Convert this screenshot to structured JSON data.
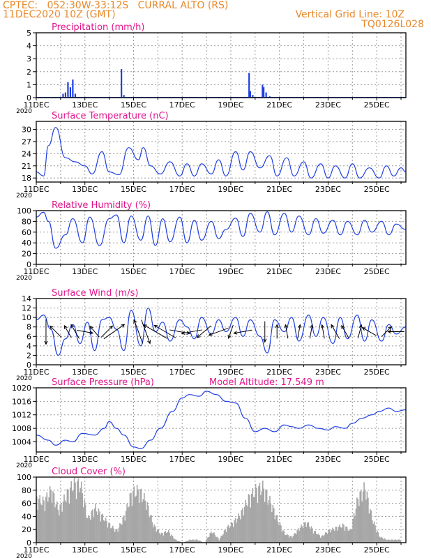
{
  "header": {
    "line1_left": "CPTEC:   052:30W-33:12S   CURRAL ALTO (RS)",
    "line2_left": "11DEC2020 10Z (GMT)",
    "line2_right": "Vertical Grid Line: 10Z",
    "line3_right": "TQ0126L028"
  },
  "colors": {
    "header_text": "#e8892b",
    "panel_title": "#e0168c",
    "series_line": "#1f3fe0",
    "precip_bar": "#1f3fe0",
    "wind_arrow": "#000000",
    "cloud_bar": "#a6a6a6",
    "grid": "#999999"
  },
  "x_axis": {
    "range_days": [
      11,
      26.2
    ],
    "date_ticks": [
      {
        "day": 11,
        "label": "11DEC"
      },
      {
        "day": 13,
        "label": "13DEC"
      },
      {
        "day": 15,
        "label": "15DEC"
      },
      {
        "day": 17,
        "label": "17DEC"
      },
      {
        "day": 19,
        "label": "19DEC"
      },
      {
        "day": 21,
        "label": "21DEC"
      },
      {
        "day": 23,
        "label": "23DEC"
      },
      {
        "day": 25,
        "label": "25DEC"
      }
    ],
    "year_label": "2020"
  },
  "chart_data": [
    {
      "type": "bar",
      "title": "Precipitation (mm/h)",
      "ylim": [
        0,
        5
      ],
      "yticks": [
        0,
        1,
        2,
        3,
        4,
        5
      ],
      "grid": true,
      "x": [
        11.1,
        11.5,
        12.0,
        12.1,
        12.2,
        12.3,
        12.4,
        12.5,
        12.6,
        14.4,
        14.5,
        14.6,
        19.6,
        19.75,
        19.8,
        19.9,
        20.3,
        20.35,
        20.45,
        20.6,
        22.0,
        24.0
      ],
      "values": [
        0.05,
        0.05,
        0.05,
        0.3,
        0.4,
        1.2,
        0.8,
        1.4,
        0.3,
        0.05,
        2.2,
        0.2,
        0.05,
        1.9,
        0.5,
        0.2,
        1.0,
        0.8,
        0.4,
        0.1,
        0.05,
        0.05
      ]
    },
    {
      "type": "line",
      "title": "Surface Temperature (nC)",
      "ylim": [
        17,
        32
      ],
      "yticks": [
        18,
        21,
        24,
        27,
        30
      ],
      "grid": true,
      "x": [
        11.0,
        11.3,
        11.5,
        11.8,
        12.2,
        12.6,
        13.0,
        13.3,
        13.7,
        14.0,
        14.4,
        14.8,
        15.2,
        15.4,
        15.7,
        16.1,
        16.5,
        16.9,
        17.2,
        17.5,
        17.8,
        18.2,
        18.5,
        18.8,
        19.2,
        19.5,
        19.8,
        20.2,
        20.6,
        20.9,
        21.3,
        21.6,
        22.0,
        22.3,
        22.7,
        23.0,
        23.3,
        23.7,
        24.0,
        24.3,
        24.7,
        25.1,
        25.4,
        25.7,
        26.0,
        26.2
      ],
      "y": [
        19.5,
        18.5,
        26.0,
        30.5,
        23.0,
        22.0,
        21.0,
        19.0,
        24.5,
        19.5,
        18.8,
        25.5,
        22.5,
        25.5,
        21.0,
        19.0,
        22.0,
        18.5,
        21.5,
        18.5,
        21.5,
        19.0,
        22.5,
        18.5,
        24.5,
        20.0,
        24.5,
        20.5,
        23.5,
        18.5,
        23.0,
        18.5,
        22.0,
        18.0,
        21.5,
        18.0,
        21.0,
        18.0,
        21.5,
        18.0,
        20.5,
        18.0,
        21.0,
        18.5,
        20.5,
        19.5
      ]
    },
    {
      "type": "line",
      "title": "Relative Humidity (%)",
      "ylim": [
        0,
        100
      ],
      "yticks": [
        0,
        20,
        40,
        60,
        80,
        100
      ],
      "grid": true,
      "x": [
        11.0,
        11.3,
        11.5,
        11.8,
        12.2,
        12.5,
        12.9,
        13.2,
        13.6,
        14.0,
        14.3,
        14.6,
        14.9,
        15.3,
        15.6,
        15.9,
        16.2,
        16.5,
        16.9,
        17.2,
        17.5,
        17.8,
        18.2,
        18.5,
        18.8,
        19.2,
        19.5,
        19.8,
        20.2,
        20.5,
        20.8,
        21.2,
        21.5,
        21.8,
        22.2,
        22.5,
        22.8,
        23.2,
        23.5,
        23.8,
        24.2,
        24.5,
        24.8,
        25.2,
        25.5,
        25.8,
        26.2
      ],
      "y": [
        88.0,
        97.0,
        80.0,
        30.0,
        55.0,
        85.0,
        40.0,
        88.0,
        35.0,
        85.0,
        92.0,
        40.0,
        90.0,
        45.0,
        90.0,
        35.0,
        85.0,
        42.0,
        88.0,
        40.0,
        82.0,
        45.0,
        80.0,
        48.0,
        65.0,
        86.0,
        52.0,
        95.0,
        60.0,
        98.0,
        55.0,
        95.0,
        60.0,
        90.0,
        55.0,
        85.0,
        58.0,
        82.0,
        55.0,
        80.0,
        55.0,
        82.0,
        60.0,
        80.0,
        55.0,
        75.0,
        65.0
      ]
    },
    {
      "type": "line",
      "title": "Surface Wind (m/s)",
      "ylim": [
        0,
        14
      ],
      "yticks": [
        0,
        2,
        4,
        6,
        8,
        10,
        12,
        14
      ],
      "grid": true,
      "x": [
        11.0,
        11.3,
        11.6,
        11.9,
        12.2,
        12.5,
        12.8,
        13.1,
        13.4,
        13.7,
        14.0,
        14.3,
        14.6,
        14.9,
        15.3,
        15.6,
        15.9,
        16.2,
        16.5,
        16.9,
        17.2,
        17.5,
        17.8,
        18.2,
        18.5,
        18.8,
        19.2,
        19.5,
        19.8,
        20.2,
        20.5,
        20.8,
        21.2,
        21.5,
        21.8,
        22.2,
        22.5,
        22.8,
        23.2,
        23.5,
        23.8,
        24.2,
        24.5,
        24.8,
        25.2,
        25.5,
        25.8,
        26.2
      ],
      "y": [
        9.5,
        10.5,
        7.5,
        2.0,
        5.5,
        8.5,
        4.5,
        9.0,
        3.0,
        9.5,
        10.0,
        7.5,
        3.0,
        11.5,
        4.0,
        12.0,
        7.0,
        9.0,
        5.0,
        9.5,
        8.0,
        5.5,
        10.0,
        6.5,
        9.5,
        7.0,
        10.0,
        6.0,
        9.5,
        6.0,
        2.5,
        9.5,
        7.0,
        10.0,
        5.0,
        10.5,
        6.0,
        10.0,
        4.5,
        10.0,
        5.5,
        10.5,
        5.0,
        9.5,
        5.0,
        8.5,
        6.5,
        8.0
      ],
      "arrows": [
        {
          "x": 11.4,
          "dir_deg": 180,
          "speed": 10
        },
        {
          "x": 11.8,
          "dir_deg": 315,
          "speed": 6
        },
        {
          "x": 12.3,
          "dir_deg": 330,
          "speed": 5
        },
        {
          "x": 12.6,
          "dir_deg": 330,
          "speed": 6
        },
        {
          "x": 13.0,
          "dir_deg": 100,
          "speed": 6
        },
        {
          "x": 13.4,
          "dir_deg": 320,
          "speed": 5
        },
        {
          "x": 13.9,
          "dir_deg": 45,
          "speed": 6
        },
        {
          "x": 14.2,
          "dir_deg": 55,
          "speed": 10
        },
        {
          "x": 15.2,
          "dir_deg": 340,
          "speed": 10
        },
        {
          "x": 15.5,
          "dir_deg": 160,
          "speed": 10
        },
        {
          "x": 15.9,
          "dir_deg": 300,
          "speed": 11
        },
        {
          "x": 16.3,
          "dir_deg": 300,
          "speed": 10
        },
        {
          "x": 16.9,
          "dir_deg": 100,
          "speed": 8
        },
        {
          "x": 17.4,
          "dir_deg": 260,
          "speed": 8
        },
        {
          "x": 17.9,
          "dir_deg": 230,
          "speed": 7
        },
        {
          "x": 18.5,
          "dir_deg": 250,
          "speed": 8
        },
        {
          "x": 19.0,
          "dir_deg": 200,
          "speed": 5
        },
        {
          "x": 19.5,
          "dir_deg": 260,
          "speed": 7
        },
        {
          "x": 20.4,
          "dir_deg": 180,
          "speed": 8
        },
        {
          "x": 20.9,
          "dir_deg": 0,
          "speed": 5
        },
        {
          "x": 21.3,
          "dir_deg": 350,
          "speed": 5
        },
        {
          "x": 21.8,
          "dir_deg": 10,
          "speed": 5
        },
        {
          "x": 22.3,
          "dir_deg": 10,
          "speed": 5
        },
        {
          "x": 22.8,
          "dir_deg": 350,
          "speed": 5
        },
        {
          "x": 23.3,
          "dir_deg": 330,
          "speed": 6
        },
        {
          "x": 23.7,
          "dir_deg": 330,
          "speed": 5
        },
        {
          "x": 24.3,
          "dir_deg": 15,
          "speed": 5
        },
        {
          "x": 24.7,
          "dir_deg": 300,
          "speed": 6
        },
        {
          "x": 25.4,
          "dir_deg": 45,
          "speed": 5
        },
        {
          "x": 25.8,
          "dir_deg": 270,
          "speed": 6
        }
      ]
    },
    {
      "type": "line",
      "title": "Surface Pressure (hPa)",
      "annotation": "Model Altitude: 17.549 m",
      "ylim": [
        1001,
        1020
      ],
      "yticks": [
        1004,
        1008,
        1012,
        1016,
        1020
      ],
      "grid": true,
      "x": [
        11.0,
        11.5,
        11.8,
        12.2,
        12.5,
        12.9,
        13.4,
        13.8,
        14.0,
        14.3,
        14.6,
        15.0,
        15.3,
        15.7,
        16.1,
        16.6,
        17.0,
        17.3,
        17.7,
        18.0,
        18.4,
        18.8,
        19.2,
        19.6,
        20.0,
        20.4,
        20.8,
        21.2,
        21.5,
        21.8,
        22.2,
        22.6,
        23.0,
        23.3,
        23.7,
        24.0,
        24.4,
        24.8,
        25.1,
        25.5,
        25.8,
        26.2
      ],
      "y": [
        1006.0,
        1004.5,
        1003.0,
        1004.5,
        1004.0,
        1006.5,
        1006.0,
        1008.0,
        1010.0,
        1008.0,
        1006.0,
        1002.5,
        1002.0,
        1004.5,
        1008.0,
        1013.0,
        1017.0,
        1018.0,
        1017.5,
        1019.0,
        1018.0,
        1016.0,
        1015.5,
        1011.0,
        1007.0,
        1008.0,
        1007.0,
        1009.0,
        1008.5,
        1008.0,
        1009.0,
        1008.0,
        1007.5,
        1008.5,
        1008.0,
        1009.5,
        1011.0,
        1012.0,
        1013.0,
        1014.0,
        1013.0,
        1013.5
      ]
    },
    {
      "type": "bar",
      "title": "Cloud Cover (%)",
      "ylim": [
        0,
        100
      ],
      "yticks": [
        0,
        20,
        40,
        60,
        80,
        100
      ],
      "grid": true,
      "x": [
        11.0,
        11.3,
        11.6,
        11.9,
        12.2,
        12.5,
        12.8,
        13.1,
        13.4,
        13.7,
        14.0,
        14.3,
        14.6,
        14.9,
        15.2,
        15.5,
        15.8,
        16.1,
        16.4,
        16.7,
        17.0,
        17.3,
        17.6,
        17.9,
        18.2,
        18.5,
        18.8,
        19.1,
        19.4,
        19.7,
        20.0,
        20.3,
        20.6,
        20.9,
        21.2,
        21.5,
        21.8,
        22.1,
        22.4,
        22.7,
        23.0,
        23.3,
        23.6,
        23.9,
        24.2,
        24.5,
        24.8,
        25.1,
        25.4,
        25.7,
        26.0
      ],
      "values": [
        75,
        70,
        90,
        55,
        80,
        100,
        100,
        40,
        60,
        45,
        30,
        20,
        45,
        85,
        90,
        70,
        30,
        15,
        20,
        5,
        0,
        5,
        5,
        0,
        20,
        5,
        25,
        35,
        50,
        75,
        90,
        95,
        70,
        40,
        15,
        10,
        25,
        35,
        20,
        10,
        20,
        25,
        30,
        20,
        75,
        95,
        40,
        10,
        5,
        5,
        5
      ]
    }
  ]
}
